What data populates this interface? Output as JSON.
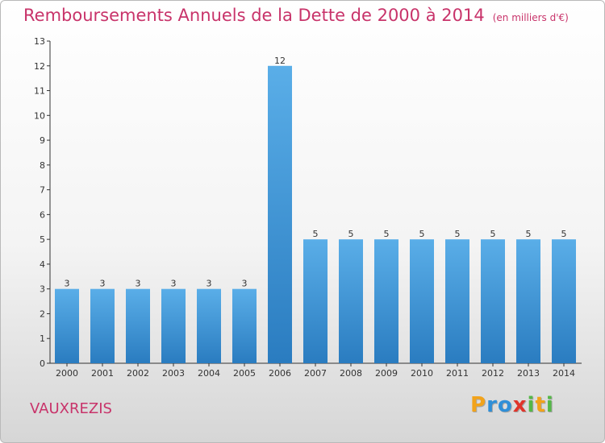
{
  "header": {
    "title": "Remboursements Annuels de la Dette de 2000 à 2014",
    "unit": "(en milliers d'€)"
  },
  "footer": {
    "commune": "VAUXREZIS"
  },
  "logo": {
    "letters": [
      "P",
      "r",
      "o",
      "x",
      "i",
      "t",
      "i"
    ],
    "colors": [
      "#f2a31b",
      "#2f8fd8",
      "#2f8fd8",
      "#e0352b",
      "#55b848",
      "#f2a31b",
      "#55b848"
    ]
  },
  "chart_data": {
    "type": "bar",
    "title": "Remboursements Annuels de la Dette de 2000 à 2014",
    "subtitle": "(en milliers d'€)",
    "categories": [
      "2000",
      "2001",
      "2002",
      "2003",
      "2004",
      "2005",
      "2006",
      "2007",
      "2008",
      "2009",
      "2010",
      "2011",
      "2012",
      "2013",
      "2014"
    ],
    "values": [
      3,
      3,
      3,
      3,
      3,
      3,
      12,
      5,
      5,
      5,
      5,
      5,
      5,
      5,
      5
    ],
    "ylim": [
      0,
      13
    ],
    "yticks": [
      0,
      1,
      2,
      3,
      4,
      5,
      6,
      7,
      8,
      9,
      10,
      11,
      12,
      13
    ],
    "grid": false,
    "legend": "none",
    "bar_color_top": "#5aaee8",
    "bar_color_bottom": "#2a7cc0",
    "axis_color": "#333333"
  }
}
